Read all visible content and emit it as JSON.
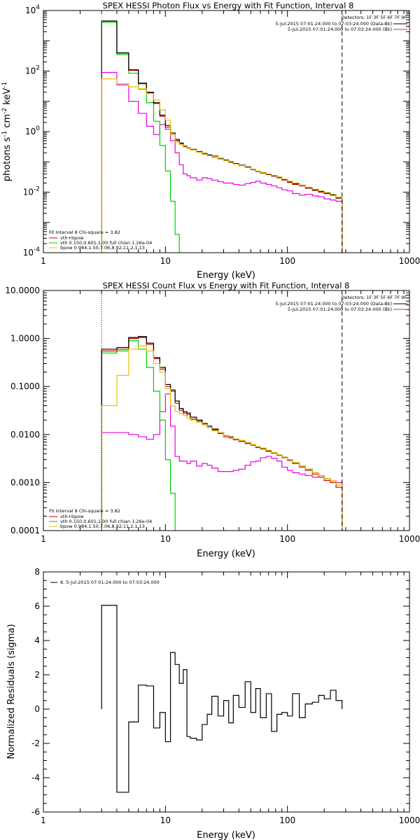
{
  "colors": {
    "data": "#000000",
    "total": "#cc0000",
    "vth": "#00cc00",
    "bpow": "#e6c200",
    "bk": "#e600e6",
    "thermal_line": "#e69500"
  },
  "chart_data": [
    {
      "type": "line",
      "title": "SPEX HESSI Photon Flux vs Energy with Fit Function, Interval 8",
      "xlabel": "Energy (keV)",
      "ylabel_main": "photons s",
      "ylabel_exp1": "-1",
      "ylabel_mid": " cm",
      "ylabel_exp2": "-2",
      "ylabel_end": " keV",
      "ylabel_exp3": "-1",
      "xscale": "log",
      "yscale": "log",
      "xlim": [
        1,
        1000
      ],
      "ylim": [
        0.0001,
        10000
      ],
      "xticks": [
        {
          "v": 1,
          "label": "1"
        },
        {
          "v": 10,
          "label": "10"
        },
        {
          "v": 100,
          "label": "100"
        },
        {
          "v": 1000,
          "label": "1000"
        }
      ],
      "yticks": [
        {
          "v": 0.0001,
          "base": "10",
          "exp": "-4"
        },
        {
          "v": 0.01,
          "base": "10",
          "exp": "-2"
        },
        {
          "v": 1,
          "base": "10",
          "exp": "0"
        },
        {
          "v": 100,
          "base": "10",
          "exp": "2"
        },
        {
          "v": 10000,
          "base": "10",
          "exp": "4"
        }
      ],
      "edges": [
        3,
        4,
        5,
        6,
        7,
        8,
        9,
        10,
        11,
        12,
        13,
        14,
        15,
        16,
        18,
        20,
        22,
        24,
        27,
        30,
        33,
        36,
        40,
        45,
        50,
        55,
        60,
        67,
        74,
        82,
        90,
        100,
        110,
        125,
        140,
        160,
        180,
        200,
        225,
        250,
        280
      ],
      "vlines": [
        {
          "x": 3,
          "style": "dotted",
          "color": "#e69500"
        },
        {
          "x": 280,
          "style": "dashed",
          "color": "#000000"
        }
      ],
      "series": [
        {
          "name": "data",
          "color": "#000000",
          "values": [
            4500,
            400,
            110,
            40,
            20,
            9,
            3.5,
            1.6,
            0.9,
            0.55,
            0.42,
            0.33,
            0.29,
            0.26,
            0.22,
            0.19,
            0.17,
            0.155,
            0.13,
            0.115,
            0.1,
            0.088,
            0.078,
            0.068,
            0.057,
            0.049,
            0.044,
            0.039,
            0.035,
            0.031,
            0.026,
            0.022,
            0.019,
            0.017,
            0.014,
            0.012,
            0.0105,
            0.0092,
            0.0081,
            0.0065
          ]
        },
        {
          "name": "vth+bpow",
          "color": "#cc0000",
          "values": [
            4400,
            390,
            105,
            38,
            19,
            8.5,
            3.2,
            1.4,
            0.8,
            0.5,
            0.4,
            0.32,
            0.28,
            0.25,
            0.21,
            0.18,
            0.16,
            0.145,
            0.124,
            0.11,
            0.095,
            0.085,
            0.075,
            0.065,
            0.055,
            0.048,
            0.043,
            0.038,
            0.034,
            0.03,
            0.025,
            0.021,
            0.018,
            0.016,
            0.0135,
            0.0115,
            0.01,
            0.009,
            0.008,
            0.0063
          ]
        },
        {
          "name": "vth 0.150,0.601,1.00 full chian 1.26e-04",
          "color": "#00cc00",
          "values": [
            4000,
            350,
            85,
            25,
            9,
            2.2,
            0.35,
            0.05,
            0.005,
            0.0004,
            3e-05
          ]
        },
        {
          "name": "bpow 0.984,1.50,7.06,8.92,11.2,1.13",
          "color": "#e6c200",
          "values": [
            55,
            38,
            30,
            26,
            18,
            11,
            5.2,
            2.4,
            0.8,
            0.45,
            0.37,
            0.31,
            0.28,
            0.25,
            0.21,
            0.18,
            0.16,
            0.15,
            0.125,
            0.11,
            0.095,
            0.085,
            0.075,
            0.065,
            0.057,
            0.05,
            0.045,
            0.04,
            0.036,
            0.032,
            0.027,
            0.023,
            0.02,
            0.017,
            0.0145,
            0.0125,
            0.011,
            0.0097,
            0.0085,
            0.0068
          ]
        },
        {
          "name": "bk",
          "color": "#e600e6",
          "values": [
            90,
            35,
            10,
            4,
            1.5,
            0.8,
            1.7,
            1.2,
            0.5,
            0.2,
            0.08,
            0.04,
            0.035,
            0.03,
            0.025,
            0.03,
            0.028,
            0.025,
            0.022,
            0.02,
            0.02,
            0.018,
            0.017,
            0.019,
            0.021,
            0.023,
            0.02,
            0.018,
            0.016,
            0.014,
            0.012,
            0.011,
            0.009,
            0.008,
            0.0085,
            0.0075,
            0.007,
            0.006,
            0.0055,
            0.005
          ]
        }
      ],
      "legend_tr": {
        "title": "Detectors: 1F 3F 5F 6F 7F 9F",
        "entries": [
          {
            "label": "5-Jul-2015 07:01:24.000 to 07:03:24.000 (Data-Bk)",
            "color": "#000000"
          },
          {
            "label": "5-Jul-2015 07:01:24.000 to 07:03:24.000 (Bk)",
            "color": "#e600e6"
          }
        ]
      },
      "legend_bl": {
        "title": "Fit Interval  8    Chi-square = 3.82",
        "entries": [
          {
            "label": "vth+bpow",
            "color": "#cc0000"
          },
          {
            "label": "vth 0.150,0.601,1.00  full chian 1.26e-04",
            "color": "#00cc00"
          },
          {
            "label": "bpow 0.984,1.50,7.06,8.92,11.2,1.13",
            "color": "#e6c200"
          }
        ]
      }
    },
    {
      "type": "line",
      "title": "SPEX HESSI Count Flux vs Energy with Fit Function, Interval 8",
      "xlabel": "Energy (keV)",
      "xscale": "log",
      "yscale": "log",
      "xlim": [
        1,
        1000
      ],
      "ylim": [
        0.0001,
        10
      ],
      "xticks": [
        {
          "v": 1,
          "label": "1"
        },
        {
          "v": 10,
          "label": "10"
        },
        {
          "v": 100,
          "label": "100"
        },
        {
          "v": 1000,
          "label": "1000"
        }
      ],
      "yticks": [
        {
          "v": 0.0001,
          "label": "0.0001"
        },
        {
          "v": 0.001,
          "label": "0.0010"
        },
        {
          "v": 0.01,
          "label": "0.0100"
        },
        {
          "v": 0.1,
          "label": "0.1000"
        },
        {
          "v": 1,
          "label": "1.0000"
        },
        {
          "v": 10,
          "label": "10.0000"
        }
      ],
      "edges": [
        3,
        4,
        5,
        6,
        7,
        8,
        9,
        10,
        11,
        12,
        13,
        14,
        15,
        16,
        18,
        20,
        22,
        24,
        27,
        30,
        33,
        36,
        40,
        45,
        50,
        55,
        60,
        67,
        74,
        82,
        90,
        100,
        110,
        125,
        140,
        160,
        180,
        200,
        225,
        250,
        280
      ],
      "vlines": [
        {
          "x": 3,
          "style": "dotted",
          "color": "#000000"
        },
        {
          "x": 280,
          "style": "dashed",
          "color": "#000000"
        }
      ],
      "series": [
        {
          "name": "data",
          "color": "#000000",
          "values": [
            0.6,
            0.65,
            1.05,
            1.1,
            0.8,
            0.4,
            0.25,
            0.11,
            0.085,
            0.05,
            0.035,
            0.03,
            0.028,
            0.023,
            0.02,
            0.017,
            0.015,
            0.013,
            0.011,
            0.0095,
            0.009,
            0.008,
            0.0075,
            0.0068,
            0.0062,
            0.0055,
            0.0052,
            0.0046,
            0.0042,
            0.0038,
            0.0034,
            0.003,
            0.0026,
            0.0022,
            0.0019,
            0.0016,
            0.0014,
            0.0012,
            0.0011,
            0.0009
          ]
        },
        {
          "name": "vth+bpow",
          "color": "#cc0000",
          "values": [
            0.55,
            0.6,
            1.0,
            1.05,
            0.75,
            0.38,
            0.23,
            0.1,
            0.08,
            0.045,
            0.032,
            0.028,
            0.026,
            0.021,
            0.019,
            0.016,
            0.014,
            0.0125,
            0.0105,
            0.009,
            0.0085,
            0.0078,
            0.0072,
            0.0065,
            0.006,
            0.0054,
            0.005,
            0.0045,
            0.0041,
            0.0037,
            0.0033,
            0.0029,
            0.0025,
            0.0021,
            0.0018,
            0.0015,
            0.0013,
            0.0011,
            0.001,
            0.0008
          ]
        },
        {
          "name": "vth 0.150,0.601,1.00 full chian 1.26e-04",
          "color": "#00cc00",
          "values": [
            0.5,
            0.55,
            0.9,
            0.6,
            0.25,
            0.08,
            0.02,
            0.003,
            0.0006,
            8e-05
          ]
        },
        {
          "name": "bpow 0.984,1.50,7.06,8.92,11.2,1.13",
          "color": "#e6c200",
          "values": [
            0.04,
            0.17,
            0.6,
            0.7,
            0.55,
            0.3,
            0.2,
            0.09,
            0.04,
            0.03,
            0.027,
            0.025,
            0.022,
            0.02,
            0.018,
            0.016,
            0.014,
            0.012,
            0.011,
            0.0095,
            0.0088,
            0.0081,
            0.0075,
            0.0068,
            0.0062,
            0.0056,
            0.0052,
            0.0047,
            0.0042,
            0.0038,
            0.0034,
            0.003,
            0.0026,
            0.0022,
            0.0019,
            0.0016,
            0.0014,
            0.0012,
            0.0011,
            0.0009
          ]
        },
        {
          "name": "bk",
          "color": "#e600e6",
          "values": [
            0.011,
            0.011,
            0.01,
            0.009,
            0.008,
            0.01,
            0.03,
            0.07,
            0.015,
            0.0035,
            0.0028,
            0.0028,
            0.0025,
            0.0028,
            0.0022,
            0.0025,
            0.0023,
            0.002,
            0.0017,
            0.0017,
            0.0017,
            0.0018,
            0.0019,
            0.0023,
            0.0027,
            0.0028,
            0.0033,
            0.0035,
            0.0032,
            0.0028,
            0.0021,
            0.0018,
            0.0016,
            0.0015,
            0.0014,
            0.0013,
            0.0013,
            0.0012,
            0.0011,
            0.001
          ]
        }
      ],
      "legend_tr": {
        "title": "Detectors: 1F 3F 5F 6F 7F 9F",
        "entries": [
          {
            "label": "5-Jul-2015 07:01:24.000 to 07:03:24.000 (Data-Bk)",
            "color": "#000000"
          },
          {
            "label": "5-Jul-2015 07:01:24.000 to 07:03:24.000 (Bk)",
            "color": "#e600e6"
          }
        ]
      },
      "legend_bl": {
        "title": "Fit Interval  8    Chi-square = 3.82",
        "entries": [
          {
            "label": "vth+bpow",
            "color": "#cc0000"
          },
          {
            "label": "vth 0.150,0.601,1.00  full chian 1.26e-04",
            "color": "#00cc00"
          },
          {
            "label": "bpow 0.984,1.50,7.06,8.92,11.2,1.13",
            "color": "#e6c200"
          }
        ]
      }
    },
    {
      "type": "line",
      "title": "",
      "xlabel": "Energy (keV)",
      "ylabel": "Normalized Residuals (sigma)",
      "xscale": "log",
      "yscale": "linear",
      "xlim": [
        1,
        1000
      ],
      "ylim": [
        -6,
        8
      ],
      "xticks": [
        {
          "v": 1,
          "label": "1"
        },
        {
          "v": 10,
          "label": "10"
        },
        {
          "v": 100,
          "label": "100"
        },
        {
          "v": 1000,
          "label": "1000"
        }
      ],
      "yticks": [
        {
          "v": -6,
          "label": "-6"
        },
        {
          "v": -4,
          "label": "-4"
        },
        {
          "v": -2,
          "label": "-2"
        },
        {
          "v": 0,
          "label": "0"
        },
        {
          "v": 2,
          "label": "2"
        },
        {
          "v": 4,
          "label": "4"
        },
        {
          "v": 6,
          "label": "6"
        },
        {
          "v": 8,
          "label": "8"
        }
      ],
      "edges": [
        3,
        4,
        5,
        6,
        7,
        8,
        9,
        10,
        11,
        12,
        13,
        14,
        15,
        16,
        18,
        20,
        22,
        24,
        27,
        30,
        33,
        36,
        40,
        45,
        50,
        55,
        60,
        67,
        74,
        82,
        90,
        100,
        110,
        125,
        140,
        160,
        180,
        200,
        225,
        250,
        280
      ],
      "series": [
        {
          "name": "8.  5-Jul-2015 07:01:24.000 to 07:03:24.000",
          "color": "#000000",
          "values": [
            6.05,
            -4.85,
            -0.75,
            1.4,
            1.35,
            -1.1,
            -0.2,
            -1.9,
            3.3,
            2.6,
            1.5,
            2.3,
            -1.6,
            -1.7,
            -1.8,
            -0.9,
            -0.3,
            0.75,
            -0.4,
            0.5,
            -0.8,
            0.8,
            0.1,
            1.6,
            -0.2,
            1.2,
            -0.5,
            0.9,
            -1.3,
            -0.3,
            -0.2,
            -0.4,
            0.9,
            -0.5,
            0.3,
            0.4,
            0.8,
            0.6,
            1.1,
            0.5
          ]
        }
      ],
      "legend_tl": {
        "entries": [
          {
            "label": "8.  5-Jul-2015 07:01:24.000 to 07:03:24.000",
            "color": "#000000"
          }
        ]
      }
    }
  ]
}
